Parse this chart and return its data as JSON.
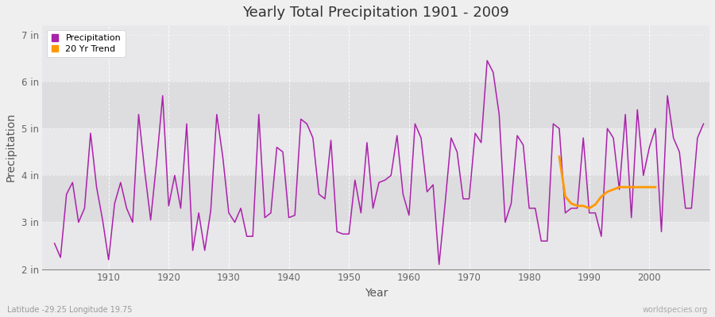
{
  "title": "Yearly Total Precipitation 1901 - 2009",
  "xlabel": "Year",
  "ylabel": "Precipitation",
  "background_color": "#f0eff0",
  "plot_bg_upper": "#eeedef",
  "plot_bg_lower": "#dddcde",
  "line_color": "#aa22aa",
  "trend_color": "#ff9900",
  "years": [
    1901,
    1902,
    1903,
    1904,
    1905,
    1906,
    1907,
    1908,
    1909,
    1910,
    1911,
    1912,
    1913,
    1914,
    1915,
    1916,
    1917,
    1918,
    1919,
    1920,
    1921,
    1922,
    1923,
    1924,
    1925,
    1926,
    1927,
    1928,
    1929,
    1930,
    1931,
    1932,
    1933,
    1934,
    1935,
    1936,
    1937,
    1938,
    1939,
    1940,
    1941,
    1942,
    1943,
    1944,
    1945,
    1946,
    1947,
    1948,
    1949,
    1950,
    1951,
    1952,
    1953,
    1954,
    1955,
    1956,
    1957,
    1958,
    1959,
    1960,
    1961,
    1962,
    1963,
    1964,
    1965,
    1966,
    1967,
    1968,
    1969,
    1970,
    1971,
    1972,
    1973,
    1974,
    1975,
    1976,
    1977,
    1978,
    1979,
    1980,
    1981,
    1982,
    1983,
    1984,
    1985,
    1986,
    1987,
    1988,
    1989,
    1990,
    1991,
    1992,
    1993,
    1994,
    1995,
    1996,
    1997,
    1998,
    1999,
    2000,
    2001,
    2002,
    2003,
    2004,
    2005,
    2006,
    2007,
    2008,
    2009
  ],
  "precip": [
    2.55,
    2.25,
    3.6,
    3.85,
    3.0,
    3.3,
    4.9,
    3.75,
    3.05,
    2.2,
    3.4,
    3.85,
    3.3,
    3.0,
    5.3,
    4.1,
    3.05,
    4.3,
    5.7,
    3.35,
    4.0,
    3.3,
    5.1,
    2.4,
    3.2,
    2.4,
    3.25,
    5.3,
    4.4,
    3.2,
    3.0,
    3.3,
    2.7,
    2.7,
    5.3,
    3.1,
    3.2,
    4.6,
    4.5,
    3.1,
    3.15,
    5.2,
    5.1,
    4.8,
    3.6,
    3.5,
    4.75,
    2.8,
    2.75,
    2.75,
    3.9,
    3.2,
    4.7,
    3.3,
    3.85,
    3.9,
    4.0,
    4.85,
    3.6,
    3.15,
    5.1,
    4.8,
    3.65,
    3.8,
    2.1,
    3.4,
    4.8,
    4.5,
    3.5,
    3.5,
    4.9,
    4.7,
    6.45,
    6.2,
    5.3,
    3.0,
    3.4,
    4.85,
    4.65,
    3.3,
    3.3,
    2.6,
    2.6,
    5.1,
    5.0,
    3.2,
    3.3,
    3.3,
    4.8,
    3.2,
    3.2,
    2.7,
    5.0,
    4.8,
    3.7,
    5.3,
    3.1,
    5.4,
    4.0,
    4.6,
    5.0,
    2.8,
    5.7,
    4.8,
    4.5,
    3.3,
    3.3,
    4.8,
    5.1
  ],
  "trend_years": [
    1985,
    1986,
    1987,
    1988,
    1989,
    1990,
    1991,
    1992,
    1993,
    1994,
    1995,
    1996,
    1997,
    1998,
    1999,
    2000,
    2001
  ],
  "trend_values": [
    4.4,
    3.55,
    3.4,
    3.35,
    3.35,
    3.3,
    3.38,
    3.55,
    3.65,
    3.7,
    3.75,
    3.75,
    3.75,
    3.75,
    3.75,
    3.75,
    3.75
  ],
  "ylim": [
    2.0,
    7.2
  ],
  "yticks": [
    2,
    3,
    4,
    5,
    6,
    7
  ],
  "ytick_labels": [
    "2 in",
    "3 in",
    "4 in",
    "5 in",
    "6 in",
    "7 in"
  ],
  "xticks": [
    1910,
    1920,
    1930,
    1940,
    1950,
    1960,
    1970,
    1980,
    1990,
    2000
  ],
  "xlim": [
    1899,
    2010
  ],
  "footer_left": "Latitude -29.25 Longitude 19.75",
  "footer_right": "worldspecies.org",
  "legend_marker_color_precip": "#aa22aa",
  "legend_marker_color_trend": "#ff9900"
}
